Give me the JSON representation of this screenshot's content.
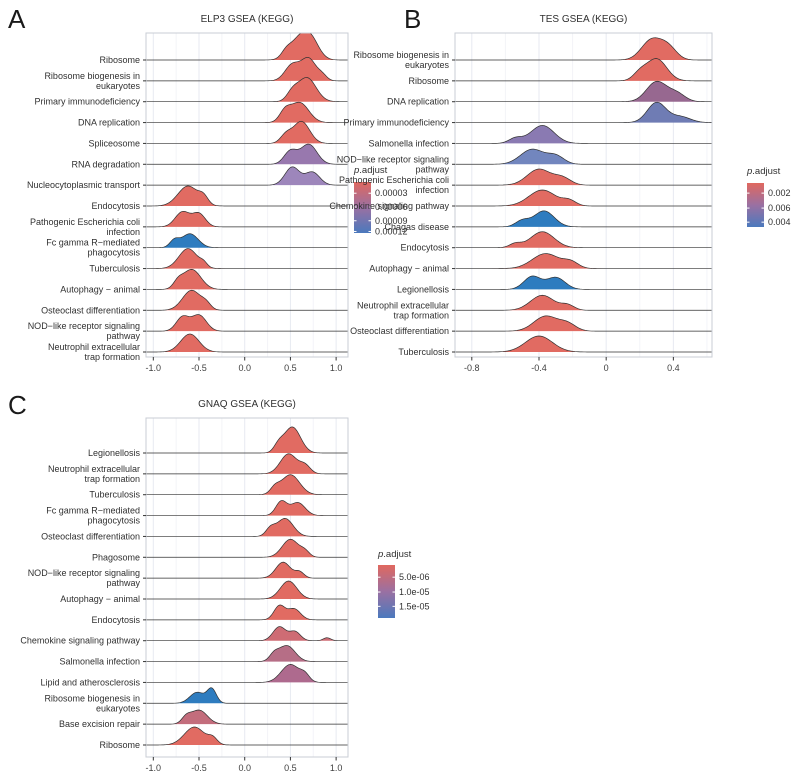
{
  "figure": {
    "background": "#ffffff"
  },
  "chart_data": [
    {
      "type": "ridgeline",
      "panel_letter": "A",
      "title": "ELP3 GSEA (KEGG)",
      "xlabel": "",
      "ylabel": "",
      "x_domain": [
        -1.08,
        1.13
      ],
      "x_ticks": [
        "-1.0",
        "-0.5",
        "0.0",
        "0.5",
        "1.0"
      ],
      "x_tick_values": [
        -1.0,
        -0.5,
        0.0,
        0.5,
        1.0
      ],
      "grid_minor": [
        -0.75,
        -0.25,
        0.25,
        0.75
      ],
      "legend": {
        "title": "p.adjust",
        "labels": [
          "0.00003",
          "0.00006",
          "0.00009",
          "0.00012"
        ],
        "top_color": "#E0685F",
        "mid_color": "#9A70A2",
        "bottom_color": "#4B79BD"
      },
      "rows": [
        {
          "label": [
            "Ribosome"
          ],
          "color": "#E16B62",
          "bumps": [
            [
              0.58,
              0.1,
              18
            ],
            [
              0.72,
              0.09,
              20
            ],
            [
              0.45,
              0.05,
              5
            ]
          ]
        },
        {
          "label": [
            "Ribosome biogenesis in",
            "eukaryotes"
          ],
          "color": "#E16B62",
          "bumps": [
            [
              0.52,
              0.08,
              16
            ],
            [
              0.7,
              0.08,
              22
            ],
            [
              0.85,
              0.05,
              5
            ]
          ]
        },
        {
          "label": [
            "Primary immunodeficiency"
          ],
          "color": "#E16B62",
          "bumps": [
            [
              0.68,
              0.1,
              24
            ],
            [
              0.52,
              0.06,
              8
            ]
          ]
        },
        {
          "label": [
            "DNA replication"
          ],
          "color": "#E16B62",
          "bumps": [
            [
              0.6,
              0.1,
              20
            ],
            [
              0.44,
              0.06,
              10
            ]
          ]
        },
        {
          "label": [
            "Spliceosome"
          ],
          "color": "#E16B62",
          "bumps": [
            [
              0.62,
              0.09,
              22
            ],
            [
              0.45,
              0.06,
              8
            ]
          ]
        },
        {
          "label": [
            "RNA degradation"
          ],
          "color": "#9878AE",
          "bumps": [
            [
              0.5,
              0.07,
              13
            ],
            [
              0.7,
              0.09,
              20
            ]
          ]
        },
        {
          "label": [
            "Nucleocytoplasmic transport"
          ],
          "color": "#9D86BB",
          "bumps": [
            [
              0.52,
              0.08,
              18
            ],
            [
              0.74,
              0.08,
              13
            ]
          ]
        },
        {
          "label": [
            "Endocytosis"
          ],
          "color": "#E16B62",
          "bumps": [
            [
              -0.62,
              0.11,
              20
            ],
            [
              -0.45,
              0.05,
              7
            ]
          ]
        },
        {
          "label": [
            "Pathogenic Escherichia coli",
            "infection"
          ],
          "color": "#E16B62",
          "bumps": [
            [
              -0.68,
              0.08,
              15
            ],
            [
              -0.5,
              0.07,
              13
            ]
          ]
        },
        {
          "label": [
            "Fc gamma R−mediated",
            "phagocytosis"
          ],
          "color": "#2E7CBF",
          "bumps": [
            [
              -0.6,
              0.09,
              14
            ],
            [
              -0.77,
              0.05,
              7
            ]
          ]
        },
        {
          "label": [
            "Tuberculosis"
          ],
          "color": "#E16B62",
          "bumps": [
            [
              -0.62,
              0.1,
              20
            ],
            [
              -0.45,
              0.04,
              4
            ]
          ]
        },
        {
          "label": [
            "Autophagy − animal"
          ],
          "color": "#E16B62",
          "bumps": [
            [
              -0.58,
              0.1,
              20
            ],
            [
              -0.73,
              0.05,
              6
            ]
          ]
        },
        {
          "label": [
            "Osteoclast differentiation"
          ],
          "color": "#E16B62",
          "bumps": [
            [
              -0.58,
              0.1,
              20
            ],
            [
              -0.42,
              0.05,
              5
            ]
          ]
        },
        {
          "label": [
            "NOD−like receptor signaling",
            "pathway"
          ],
          "color": "#E16B62",
          "bumps": [
            [
              -0.68,
              0.07,
              14
            ],
            [
              -0.5,
              0.08,
              16
            ]
          ]
        },
        {
          "label": [
            "Neutrophil extracellular",
            "trap formation"
          ],
          "color": "#E16B62",
          "bumps": [
            [
              -0.6,
              0.1,
              18
            ]
          ]
        }
      ]
    },
    {
      "type": "ridgeline",
      "panel_letter": "B",
      "title": "TES GSEA (KEGG)",
      "xlabel": "",
      "ylabel": "",
      "x_domain": [
        -0.9,
        0.63
      ],
      "x_ticks": [
        "-0.8",
        "-0.4",
        "0",
        "0.4"
      ],
      "x_tick_values": [
        -0.8,
        -0.4,
        0.0,
        0.4
      ],
      "grid_minor": [
        -0.6,
        -0.2,
        0.2,
        0.6
      ],
      "legend": {
        "title": "p.adjust",
        "labels": [
          "0.002",
          "0.006",
          "0.004"
        ],
        "top_color": "#E0685F",
        "mid_color": "#9A70A2",
        "bottom_color": "#4B79BD"
      },
      "rows": [
        {
          "label": [
            "Ribosome biogenesis in",
            "eukaryotes"
          ],
          "color": "#E16B62",
          "bumps": [
            [
              0.27,
              0.06,
              20
            ],
            [
              0.37,
              0.05,
              12
            ]
          ]
        },
        {
          "label": [
            "Ribosome"
          ],
          "color": "#E16B62",
          "bumps": [
            [
              0.3,
              0.06,
              22
            ],
            [
              0.2,
              0.04,
              7
            ]
          ]
        },
        {
          "label": [
            "DNA replication"
          ],
          "color": "#976890",
          "bumps": [
            [
              0.3,
              0.06,
              20
            ],
            [
              0.42,
              0.05,
              8
            ]
          ]
        },
        {
          "label": [
            "Primary immunodeficiency"
          ],
          "color": "#6F7CB4",
          "bumps": [
            [
              0.3,
              0.055,
              20
            ],
            [
              0.44,
              0.06,
              6
            ]
          ]
        },
        {
          "label": [
            "Salmonella infection"
          ],
          "color": "#8A7AB2",
          "bumps": [
            [
              -0.38,
              0.07,
              18
            ],
            [
              -0.54,
              0.04,
              5
            ]
          ]
        },
        {
          "label": [
            "NOD−like receptor signaling",
            "pathway"
          ],
          "color": "#7286BE",
          "bumps": [
            [
              -0.44,
              0.07,
              15
            ],
            [
              -0.3,
              0.05,
              8
            ]
          ]
        },
        {
          "label": [
            "Pathogenic Escherichia coli",
            "infection"
          ],
          "color": "#E16B62",
          "bumps": [
            [
              -0.4,
              0.07,
              16
            ],
            [
              -0.26,
              0.05,
              7
            ]
          ]
        },
        {
          "label": [
            "Chemokine signaling pathway"
          ],
          "color": "#E16B62",
          "bumps": [
            [
              -0.38,
              0.08,
              16
            ],
            [
              -0.22,
              0.04,
              5
            ]
          ]
        },
        {
          "label": [
            "Chagas disease"
          ],
          "color": "#2E7CBF",
          "bumps": [
            [
              -0.37,
              0.06,
              16
            ],
            [
              -0.5,
              0.04,
              6
            ]
          ]
        },
        {
          "label": [
            "Endocytosis"
          ],
          "color": "#E16B62",
          "bumps": [
            [
              -0.38,
              0.07,
              16
            ],
            [
              -0.54,
              0.035,
              4
            ]
          ]
        },
        {
          "label": [
            "Autophagy − animal"
          ],
          "color": "#E16B62",
          "bumps": [
            [
              -0.36,
              0.08,
              15
            ],
            [
              -0.21,
              0.045,
              6
            ]
          ]
        },
        {
          "label": [
            "Legionellosis"
          ],
          "color": "#2E7CBF",
          "bumps": [
            [
              -0.44,
              0.05,
              13
            ],
            [
              -0.3,
              0.055,
              12
            ]
          ]
        },
        {
          "label": [
            "Neutrophil extracellular",
            "trap formation"
          ],
          "color": "#E16B62",
          "bumps": [
            [
              -0.38,
              0.07,
              15
            ],
            [
              -0.23,
              0.04,
              5
            ]
          ]
        },
        {
          "label": [
            "Osteoclast differentiation"
          ],
          "color": "#E16B62",
          "bumps": [
            [
              -0.36,
              0.07,
              15
            ],
            [
              -0.23,
              0.05,
              7
            ]
          ]
        },
        {
          "label": [
            "Tuberculosis"
          ],
          "color": "#E16B62",
          "bumps": [
            [
              -0.4,
              0.08,
              16
            ]
          ]
        }
      ]
    },
    {
      "type": "ridgeline",
      "panel_letter": "C",
      "title": "GNAQ GSEA (KEGG)",
      "xlabel": "",
      "ylabel": "",
      "x_domain": [
        -1.08,
        1.13
      ],
      "x_ticks": [
        "-1.0",
        "-0.5",
        "0.0",
        "0.5",
        "1.0"
      ],
      "x_tick_values": [
        -1.0,
        -0.5,
        0.0,
        0.5,
        1.0
      ],
      "grid_minor": [
        -0.75,
        -0.25,
        0.25,
        0.75
      ],
      "legend": {
        "title": "p.adjust",
        "labels": [
          "5.0e-06",
          "1.0e-05",
          "1.5e-05"
        ],
        "top_color": "#E0685F",
        "mid_color": "#9A70A2",
        "bottom_color": "#4B79BD"
      },
      "rows": [
        {
          "label": [
            "Legionellosis"
          ],
          "color": "#E16B62",
          "bumps": [
            [
              0.52,
              0.09,
              26
            ],
            [
              0.37,
              0.05,
              7
            ]
          ]
        },
        {
          "label": [
            "Neutrophil extracellular",
            "trap formation"
          ],
          "color": "#E16B62",
          "bumps": [
            [
              0.48,
              0.09,
              20
            ],
            [
              0.66,
              0.06,
              8
            ]
          ]
        },
        {
          "label": [
            "Tuberculosis"
          ],
          "color": "#E16B62",
          "bumps": [
            [
              0.5,
              0.1,
              20
            ],
            [
              0.33,
              0.05,
              6
            ]
          ]
        },
        {
          "label": [
            "Fc gamma R−mediated",
            "phagocytosis"
          ],
          "color": "#E16B62",
          "bumps": [
            [
              0.4,
              0.06,
              14
            ],
            [
              0.58,
              0.08,
              13
            ]
          ]
        },
        {
          "label": [
            "Osteoclast differentiation"
          ],
          "color": "#E16B62",
          "bumps": [
            [
              0.44,
              0.09,
              18
            ],
            [
              0.28,
              0.05,
              7
            ]
          ]
        },
        {
          "label": [
            "Phagosome"
          ],
          "color": "#E16B62",
          "bumps": [
            [
              0.5,
              0.09,
              18
            ],
            [
              0.66,
              0.05,
              5
            ]
          ]
        },
        {
          "label": [
            "NOD−like receptor signaling",
            "pathway"
          ],
          "color": "#E16B62",
          "bumps": [
            [
              0.42,
              0.08,
              16
            ],
            [
              0.6,
              0.05,
              6
            ]
          ]
        },
        {
          "label": [
            "Autophagy − animal"
          ],
          "color": "#E16B62",
          "bumps": [
            [
              0.48,
              0.09,
              18
            ]
          ]
        },
        {
          "label": [
            "Endocytosis"
          ],
          "color": "#E16B62",
          "bumps": [
            [
              0.38,
              0.06,
              14
            ],
            [
              0.54,
              0.07,
              11
            ]
          ]
        },
        {
          "label": [
            "Chemokine signaling pathway"
          ],
          "color": "#CE6C74",
          "bumps": [
            [
              0.38,
              0.07,
              14
            ],
            [
              0.55,
              0.06,
              9
            ],
            [
              0.9,
              0.04,
              3
            ]
          ]
        },
        {
          "label": [
            "Salmonella infection"
          ],
          "color": "#B66E86",
          "bumps": [
            [
              0.46,
              0.09,
              16
            ],
            [
              0.32,
              0.05,
              6
            ]
          ]
        },
        {
          "label": [
            "Lipid and atherosclerosis"
          ],
          "color": "#AE6A8E",
          "bumps": [
            [
              0.5,
              0.1,
              18
            ],
            [
              0.66,
              0.05,
              6
            ]
          ]
        },
        {
          "label": [
            "Ribosome biogenesis in",
            "eukaryotes"
          ],
          "color": "#2E7CBF",
          "bumps": [
            [
              -0.36,
              0.05,
              14
            ],
            [
              -0.52,
              0.08,
              11
            ]
          ]
        },
        {
          "label": [
            "Base excision repair"
          ],
          "color": "#C36D7C",
          "bumps": [
            [
              -0.5,
              0.09,
              14
            ],
            [
              -0.64,
              0.05,
              6
            ]
          ]
        },
        {
          "label": [
            "Ribosome"
          ],
          "color": "#E16B62",
          "bumps": [
            [
              -0.55,
              0.11,
              18
            ],
            [
              -0.35,
              0.05,
              6
            ]
          ]
        }
      ]
    }
  ]
}
